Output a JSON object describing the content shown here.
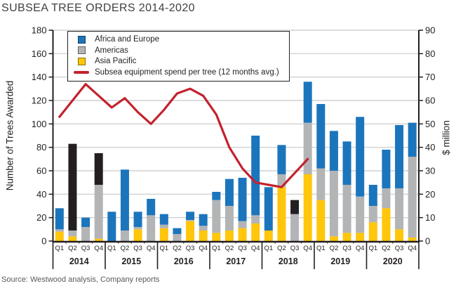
{
  "title": "SUBSEA TREE ORDERS 2014-2020",
  "source": "Source: Westwood analysis, Company reports",
  "axes": {
    "left": {
      "label": "Number of Trees Awarded",
      "max": 180,
      "ticks": [
        180,
        160,
        140,
        120,
        100,
        80,
        60,
        40,
        20,
        0
      ]
    },
    "right": {
      "label": "$ million",
      "max": 90,
      "ticks": [
        90,
        80,
        70,
        60,
        50,
        40,
        30,
        20,
        10,
        0
      ]
    },
    "x": {
      "quarter_labels": [
        "Q1",
        "Q2",
        "Q3",
        "Q4"
      ],
      "year_labels": [
        "2014",
        "2015",
        "2016",
        "2017",
        "2018",
        "2019",
        "2020"
      ]
    }
  },
  "legend": [
    {
      "label": "Africa and Europe",
      "color": "#1B75BC",
      "type": "square"
    },
    {
      "label": "Americas",
      "color": "#B2B4B6",
      "type": "square"
    },
    {
      "label": "Asia Pacific",
      "color": "#FFC60B",
      "type": "square"
    },
    {
      "label": "Subsea equipment spend per tree (12 months avg.)",
      "color": "#C2222E",
      "type": "line"
    }
  ],
  "chart_data": {
    "type": "bar",
    "subtype": "stacked-with-line-overlay",
    "title": "SUBSEA TREE ORDERS 2014-2020",
    "xlabel": "",
    "ylabel_left": "Number of Trees Awarded",
    "ylabel_right": "$ million",
    "ylim_left": [
      0,
      180
    ],
    "ylim_right": [
      0,
      90
    ],
    "grid": true,
    "legend_position": "top-left-inside",
    "categories": [
      "2014 Q1",
      "2014 Q2",
      "2014 Q3",
      "2014 Q4",
      "2015 Q1",
      "2015 Q2",
      "2015 Q3",
      "2015 Q4",
      "2016 Q1",
      "2016 Q2",
      "2016 Q3",
      "2016 Q4",
      "2017 Q1",
      "2017 Q2",
      "2017 Q3",
      "2017 Q4",
      "2018 Q1",
      "2018 Q2",
      "2018 Q3",
      "2018 Q4",
      "2019 Q1",
      "2019 Q2",
      "2019 Q3",
      "2019 Q4",
      "2020 Q1",
      "2020 Q2",
      "2020 Q3",
      "2020 Q4"
    ],
    "series": [
      {
        "name": "Asia Pacific",
        "color": "#FFC60B",
        "values": [
          8,
          4,
          0,
          2,
          0,
          0,
          10,
          0,
          11,
          0,
          17,
          9,
          7,
          9,
          11,
          15,
          9,
          46,
          0,
          57,
          35,
          4,
          7,
          7,
          16,
          28,
          10,
          3
        ]
      },
      {
        "name": "Americas",
        "color": "#B2B4B6",
        "values": [
          2,
          5,
          12,
          46,
          0,
          9,
          2,
          22,
          3,
          6,
          1,
          4,
          28,
          21,
          6,
          7,
          0,
          11,
          23,
          44,
          27,
          56,
          41,
          31,
          14,
          17,
          35,
          69
        ]
      },
      {
        "name": "Africa and Europe",
        "color": "#1B75BC",
        "values": [
          18,
          0,
          8,
          0,
          25,
          52,
          13,
          14,
          9,
          5,
          7,
          10,
          7,
          23,
          37,
          68,
          37,
          25,
          0,
          35,
          55,
          34,
          37,
          68,
          18,
          33,
          54,
          29
        ]
      },
      {
        "name": "Unlabeled (black segment)",
        "color": "#231F20",
        "values": [
          0,
          74,
          0,
          27,
          0,
          0,
          0,
          0,
          0,
          0,
          0,
          0,
          0,
          0,
          0,
          0,
          0,
          0,
          12,
          0,
          0,
          0,
          0,
          0,
          0,
          0,
          0,
          0
        ]
      }
    ],
    "line": {
      "name": "Subsea equipment spend per tree (12 months avg.)",
      "color": "#C2222E",
      "axis": "right",
      "values": [
        53,
        60,
        67,
        62,
        57,
        61,
        55,
        50,
        56,
        63,
        65,
        62,
        54,
        40,
        31,
        25,
        24,
        23,
        29,
        35,
        null,
        null,
        null,
        null,
        null,
        null,
        null,
        null
      ]
    }
  }
}
